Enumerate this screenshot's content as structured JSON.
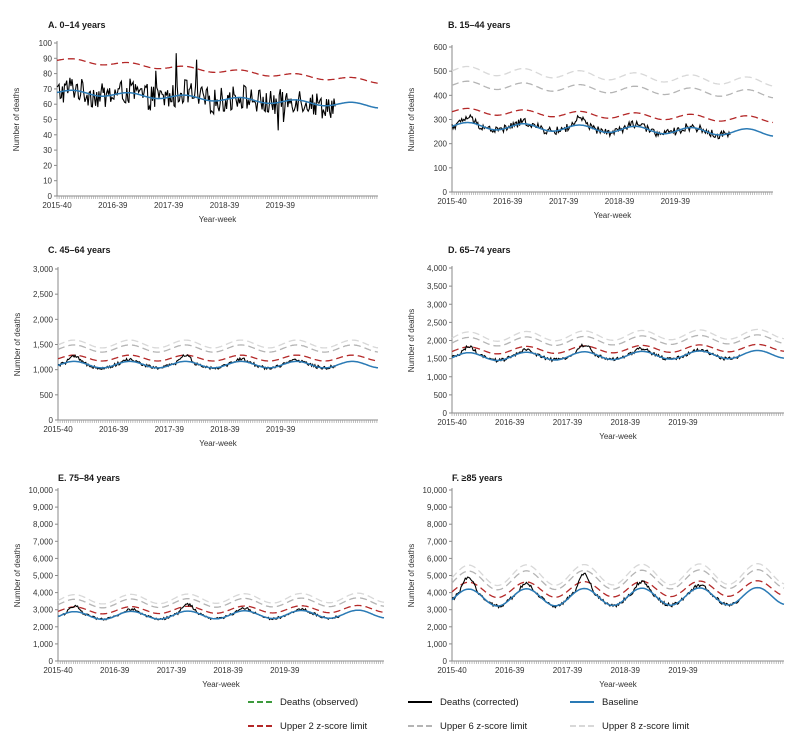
{
  "chart_data": [
    {
      "type": "line",
      "panel": "A. 0–14 years",
      "ylabel": "Number of deaths",
      "xlabel": "Year-week",
      "ylim": [
        0,
        100
      ],
      "yticks": [
        "0",
        "10",
        "20",
        "30",
        "40",
        "50",
        "60",
        "70",
        "80",
        "90",
        "100"
      ],
      "ytick_values": [
        0,
        10,
        20,
        30,
        40,
        50,
        60,
        70,
        80,
        90,
        100
      ],
      "xticks": [
        "2015-40",
        "2016-39",
        "2017-39",
        "2018-39",
        "2019-39"
      ],
      "n_weeks": 300,
      "series": [
        {
          "name": "Deaths (observed)",
          "key": "observed"
        },
        {
          "name": "Deaths (corrected)",
          "key": "corrected"
        },
        {
          "name": "Baseline",
          "key": "baseline"
        },
        {
          "name": "Upper 2 z-score limit",
          "key": "z2"
        }
      ],
      "model": {
        "base": [
          68,
          59
        ],
        "seasonal": 1.5,
        "noise": 7,
        "z2": [
          89,
          75
        ],
        "z6": null,
        "z8": null,
        "covid_peak": 4,
        "obs_drop": 18,
        "spikes": [
          [
            92,
            20
          ],
          [
            111,
            20
          ],
          [
            130,
            17
          ],
          [
            206,
            -16
          ],
          [
            211,
            -16
          ]
        ]
      }
    },
    {
      "type": "line",
      "panel": "B. 15–44 years",
      "ylabel": "Number of deaths",
      "xlabel": "Year-week",
      "ylim": [
        0,
        600
      ],
      "yticks": [
        "0",
        "100",
        "200",
        "300",
        "400",
        "500",
        "600"
      ],
      "ytick_values": [
        0,
        100,
        200,
        300,
        400,
        500,
        600
      ],
      "xticks": [
        "2015-40",
        "2016-39",
        "2017-39",
        "2018-39",
        "2019-39"
      ],
      "n_weeks": 300,
      "series": [
        {
          "name": "Deaths (observed)",
          "key": "observed"
        },
        {
          "name": "Deaths (corrected)",
          "key": "corrected"
        },
        {
          "name": "Baseline",
          "key": "baseline"
        },
        {
          "name": "Upper 2 z-score limit",
          "key": "z2"
        },
        {
          "name": "Upper 6 z-score limit",
          "key": "z6"
        },
        {
          "name": "Upper 8 z-score limit",
          "key": "z8"
        }
      ],
      "model": {
        "base": [
          275,
          245
        ],
        "seasonal": 14,
        "noise": 14,
        "z2": [
          335,
          300
        ],
        "z6": [
          445,
          405
        ],
        "z8": [
          505,
          455
        ],
        "covid_peak": 210,
        "obs_drop": 75,
        "spikes": []
      }
    },
    {
      "type": "line",
      "panel": "C. 45–64 years",
      "ylabel": "Number of deaths",
      "xlabel": "Year-week",
      "ylim": [
        0,
        3000
      ],
      "yticks": [
        "0",
        "500",
        "1,000",
        "1,500",
        "2,000",
        "2,500",
        "3,000"
      ],
      "ytick_values": [
        0,
        500,
        1000,
        1500,
        2000,
        2500,
        3000
      ],
      "xticks": [
        "2015-40",
        "2016-39",
        "2017-39",
        "2018-39",
        "2019-39"
      ],
      "n_weeks": 300,
      "series": [
        {
          "name": "Deaths (observed)",
          "key": "observed"
        },
        {
          "name": "Deaths (corrected)",
          "key": "corrected"
        },
        {
          "name": "Baseline",
          "key": "baseline"
        },
        {
          "name": "Upper 2 z-score limit",
          "key": "z2"
        },
        {
          "name": "Upper 6 z-score limit",
          "key": "z6"
        },
        {
          "name": "Upper 8 z-score limit",
          "key": "z8"
        }
      ],
      "model": {
        "base": [
          1100,
          1100
        ],
        "seasonal": 65,
        "noise": 28,
        "z2": [
          1230,
          1230
        ],
        "z6": [
          1420,
          1420
        ],
        "z8": [
          1510,
          1510
        ],
        "covid_peak": 1250,
        "obs_drop": 150,
        "spikes": []
      }
    },
    {
      "type": "line",
      "panel": "D. 65–74 years",
      "ylabel": "Number of deaths",
      "xlabel": "Year-week",
      "ylim": [
        0,
        4000
      ],
      "yticks": [
        "0",
        "500",
        "1,000",
        "1,500",
        "2,000",
        "2,500",
        "3,000",
        "3,500",
        "4,000"
      ],
      "ytick_values": [
        0,
        500,
        1000,
        1500,
        2000,
        2500,
        3000,
        3500,
        4000
      ],
      "xticks": [
        "2015-40",
        "2016-39",
        "2017-39",
        "2018-39",
        "2019-39"
      ],
      "n_weeks": 300,
      "series": [
        {
          "name": "Deaths (observed)",
          "key": "observed"
        },
        {
          "name": "Deaths (corrected)",
          "key": "corrected"
        },
        {
          "name": "Baseline",
          "key": "baseline"
        },
        {
          "name": "Upper 2 z-score limit",
          "key": "z2"
        },
        {
          "name": "Upper 6 z-score limit",
          "key": "z6"
        },
        {
          "name": "Upper 8 z-score limit",
          "key": "z8"
        }
      ],
      "model": {
        "base": [
          1550,
          1620
        ],
        "seasonal": 110,
        "noise": 40,
        "z2": [
          1720,
          1800
        ],
        "z6": [
          1960,
          2040
        ],
        "z8": [
          2100,
          2180
        ],
        "covid_peak": 1600,
        "obs_drop": 200,
        "spikes": []
      }
    },
    {
      "type": "line",
      "panel": "E. 75–84 years",
      "ylabel": "Number of deaths",
      "xlabel": "Year-week",
      "ylim": [
        0,
        10000
      ],
      "yticks": [
        "0",
        "1,000",
        "2,000",
        "3,000",
        "4,000",
        "5,000",
        "6,000",
        "7,000",
        "8,000",
        "9,000",
        "10,000"
      ],
      "ytick_values": [
        0,
        1000,
        2000,
        3000,
        4000,
        5000,
        6000,
        7000,
        8000,
        9000,
        10000
      ],
      "xticks": [
        "2015-40",
        "2016-39",
        "2017-39",
        "2018-39",
        "2019-39"
      ],
      "n_weeks": 300,
      "series": [
        {
          "name": "Deaths (observed)",
          "key": "observed"
        },
        {
          "name": "Deaths (corrected)",
          "key": "corrected"
        },
        {
          "name": "Baseline",
          "key": "baseline"
        },
        {
          "name": "Upper 2 z-score limit",
          "key": "z2"
        },
        {
          "name": "Upper 6 z-score limit",
          "key": "z6"
        },
        {
          "name": "Upper 8 z-score limit",
          "key": "z8"
        }
      ],
      "model": {
        "base": [
          2650,
          2750
        ],
        "seasonal": 230,
        "noise": 60,
        "z2": [
          2950,
          3050
        ],
        "z6": [
          3350,
          3450
        ],
        "z8": [
          3600,
          3700
        ],
        "covid_peak": 3700,
        "obs_drop": 250,
        "spikes": []
      }
    },
    {
      "type": "line",
      "panel": "F. ≥85 years",
      "ylabel": "Number of deaths",
      "xlabel": "Year-week",
      "ylim": [
        0,
        10000
      ],
      "yticks": [
        "0",
        "1,000",
        "2,000",
        "3,000",
        "4,000",
        "5,000",
        "6,000",
        "7,000",
        "8,000",
        "9,000",
        "10,000"
      ],
      "ytick_values": [
        0,
        1000,
        2000,
        3000,
        4000,
        5000,
        6000,
        7000,
        8000,
        9000,
        10000
      ],
      "xticks": [
        "2015-40",
        "2016-39",
        "2017-39",
        "2018-39",
        "2019-39"
      ],
      "n_weeks": 300,
      "series": [
        {
          "name": "Deaths (observed)",
          "key": "observed"
        },
        {
          "name": "Deaths (corrected)",
          "key": "corrected"
        },
        {
          "name": "Baseline",
          "key": "baseline"
        },
        {
          "name": "Upper 2 z-score limit",
          "key": "z2"
        },
        {
          "name": "Upper 6 z-score limit",
          "key": "z6"
        },
        {
          "name": "Upper 8 z-score limit",
          "key": "z8"
        }
      ],
      "model": {
        "base": [
          3700,
          3800
        ],
        "seasonal": 500,
        "noise": 90,
        "z2": [
          4150,
          4250
        ],
        "z6": [
          4700,
          4800
        ],
        "z8": [
          5000,
          5100
        ],
        "covid_peak": 4800,
        "obs_drop": 400,
        "spikes": []
      }
    }
  ],
  "legend": [
    {
      "label": "Deaths (observed)",
      "color": "#3c9a3c",
      "style": "dashed",
      "width": 2
    },
    {
      "label": "Deaths (corrected)",
      "color": "#000000",
      "style": "solid",
      "width": 2
    },
    {
      "label": "Baseline",
      "color": "#2a7ab5",
      "style": "solid",
      "width": 2.5
    },
    {
      "label": "Upper 2 z-score limit",
      "color": "#b42828",
      "style": "dashed",
      "width": 2
    },
    {
      "label": "Upper 6 z-score limit",
      "color": "#b4b4b4",
      "style": "dashed",
      "width": 2
    },
    {
      "label": "Upper 8 z-score limit",
      "color": "#d8d8d8",
      "style": "dashed",
      "width": 2
    }
  ],
  "colors": {
    "observed": "#6aa84f",
    "corrected": "#000000",
    "baseline": "#2a7ab5",
    "z2": "#b42828",
    "z6": "#b4b4b4",
    "z8": "#d8d8d8",
    "axis": "#8a8a8a"
  }
}
